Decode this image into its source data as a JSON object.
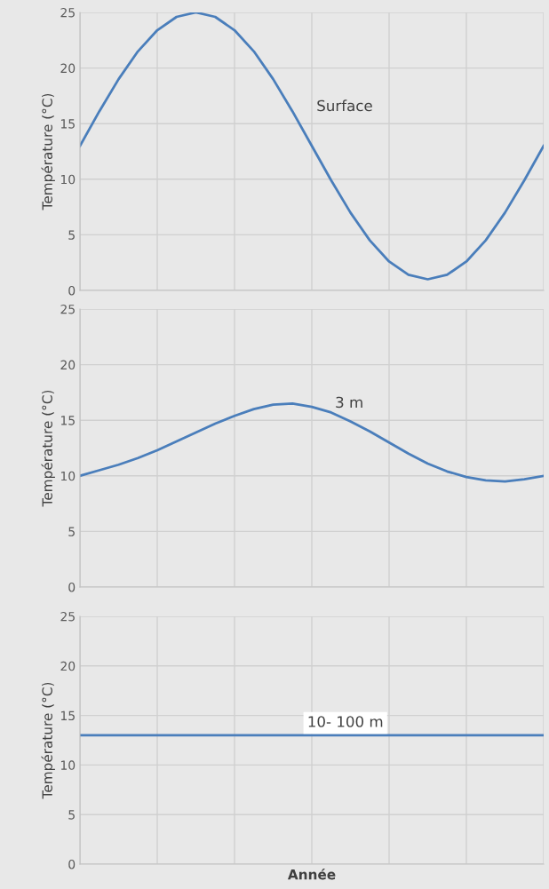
{
  "chart_data": [
    {
      "type": "line",
      "ylabel": "Température (°C)",
      "categories": [
        null,
        null,
        null,
        null,
        null,
        null,
        null,
        null,
        null,
        null,
        null,
        null,
        null,
        null,
        null,
        null,
        null,
        null,
        null,
        null,
        null,
        null,
        null,
        null,
        null
      ],
      "series": [
        {
          "color": "#4a7ebb",
          "values": [
            13,
            16.1,
            19,
            21.5,
            23.4,
            24.6,
            25,
            24.6,
            23.4,
            21.5,
            19,
            16.1,
            13,
            9.9,
            7,
            4.5,
            2.6,
            1.4,
            1,
            1.4,
            2.6,
            4.5,
            7,
            9.9,
            13
          ]
        }
      ],
      "ylim": [
        0,
        25
      ],
      "yticks": [
        0,
        5,
        10,
        15,
        20,
        25
      ],
      "grid": true,
      "tick_labels": "y",
      "annotations": [
        "Surface"
      ]
    },
    {
      "type": "line",
      "ylabel": "Température (°C)",
      "categories": [
        null,
        null,
        null,
        null,
        null,
        null,
        null,
        null,
        null,
        null,
        null,
        null,
        null,
        null,
        null,
        null,
        null,
        null,
        null,
        null,
        null,
        null,
        null,
        null,
        null
      ],
      "series": [
        {
          "color": "#4a7ebb",
          "values": [
            10,
            10.5,
            11,
            11.6,
            12.3,
            13.1,
            13.9,
            14.7,
            15.4,
            16,
            16.4,
            16.5,
            16.2,
            15.7,
            14.9,
            14,
            13,
            12,
            11.1,
            10.4,
            9.9,
            9.6,
            9.5,
            9.7,
            10
          ]
        }
      ],
      "ylim": [
        0,
        25
      ],
      "yticks": [
        0,
        5,
        10,
        15,
        20,
        25
      ],
      "grid": true,
      "tick_labels": "y",
      "annotations": [
        "3 m"
      ]
    },
    {
      "type": "line",
      "ylabel": "Température (°C)",
      "xlabel": "Année",
      "categories": [
        null,
        null,
        null,
        null,
        null,
        null,
        null,
        null,
        null,
        null,
        null,
        null,
        null,
        null,
        null,
        null,
        null,
        null,
        null,
        null,
        null,
        null,
        null,
        null,
        null
      ],
      "series": [
        {
          "color": "#4a7ebb",
          "values": [
            13,
            13,
            13,
            13,
            13,
            13,
            13,
            13,
            13,
            13,
            13,
            13,
            13,
            13,
            13,
            13,
            13,
            13,
            13,
            13,
            13,
            13,
            13,
            13,
            13
          ]
        }
      ],
      "ylim": [
        0,
        25
      ],
      "yticks": [
        0,
        5,
        10,
        15,
        20,
        25
      ],
      "grid": true,
      "tick_labels": "y",
      "annotations": [
        "10- 100 m"
      ]
    }
  ]
}
